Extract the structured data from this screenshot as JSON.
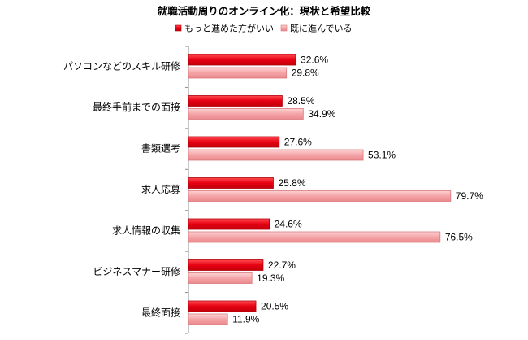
{
  "chart_data": {
    "type": "bar",
    "orientation": "horizontal",
    "title": "就職活動周りのオンライン化：現状と希望比較",
    "categories": [
      "パソコンなどのスキル研修",
      "最終手前までの面接",
      "書類選考",
      "求人応募",
      "求人情報の収集",
      "ビジネスマナー研修",
      "最終面接"
    ],
    "series": [
      {
        "name": "もっと進めた方がいい",
        "color": "#e60012",
        "values": [
          32.6,
          28.5,
          27.6,
          25.8,
          24.6,
          22.7,
          20.5
        ],
        "labels": [
          "32.6%",
          "28.5%",
          "27.6%",
          "25.8%",
          "24.6%",
          "22.7%",
          "20.5%"
        ]
      },
      {
        "name": "既に進んでいる",
        "color": "#f4a4a7",
        "values": [
          29.8,
          34.9,
          53.1,
          79.7,
          76.5,
          19.3,
          11.9
        ],
        "labels": [
          "29.8%",
          "34.9%",
          "53.1%",
          "79.7%",
          "76.5%",
          "19.3%",
          "11.9%"
        ]
      }
    ],
    "value_unit": "%",
    "xlim": [
      0,
      100
    ],
    "grid": false,
    "legend_position": "top"
  }
}
